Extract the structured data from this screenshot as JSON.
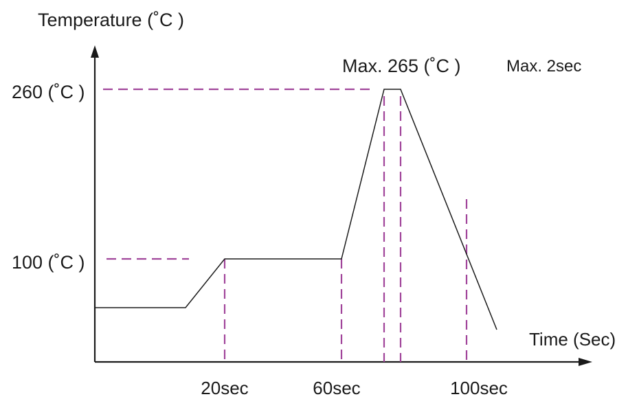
{
  "labels": {
    "y_axis_title": "Temperature (˚C )",
    "x_axis_title": "Time (Sec)",
    "y_tick_260": "260 (˚C )",
    "y_tick_100": "100 (˚C )",
    "x_tick_20": "20sec",
    "x_tick_60": "60sec",
    "x_tick_100": "100sec",
    "peak_temp": "Max. 265 (˚C )",
    "peak_time": "Max. 2sec"
  },
  "colors": {
    "axis": "#1a1a1a",
    "profile": "#1a1a1a",
    "guide": "#a0449a"
  }
}
